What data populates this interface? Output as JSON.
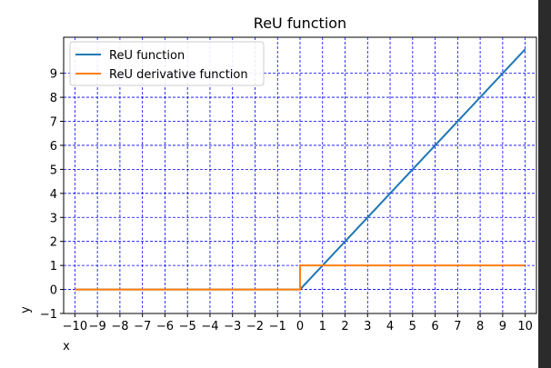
{
  "chart_data": {
    "type": "line",
    "title": "ReU function",
    "xlabel": "x",
    "ylabel": "y",
    "xlim": [
      -10.5,
      10.5
    ],
    "ylim": [
      -1,
      10.5
    ],
    "xticks": [
      -10,
      -9,
      -8,
      -7,
      -6,
      -5,
      -4,
      -3,
      -2,
      -1,
      0,
      1,
      2,
      3,
      4,
      5,
      6,
      7,
      8,
      9,
      10
    ],
    "yticks": [
      -1,
      0,
      1,
      2,
      3,
      4,
      5,
      6,
      7,
      8,
      9
    ],
    "grid": true,
    "grid_color": "#0000ff",
    "legend_position": "upper-left",
    "series": [
      {
        "name": "ReU function",
        "color": "#1f77b4",
        "x": [
          -10,
          0,
          10
        ],
        "y": [
          0,
          0,
          10
        ]
      },
      {
        "name": "ReU derivative function",
        "color": "#ff7f0e",
        "x": [
          -10,
          0,
          0,
          10
        ],
        "y": [
          0,
          0,
          1,
          1
        ]
      }
    ]
  }
}
